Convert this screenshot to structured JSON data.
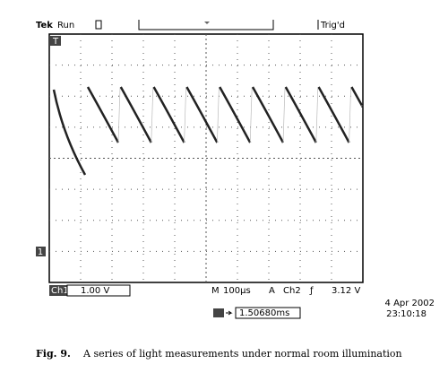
{
  "screen": {
    "brand": "Tek",
    "status": "Run",
    "trigger_status": "Trig'd",
    "trigger_marker": "T",
    "channel_marker": "1"
  },
  "readout": {
    "channel": "Ch1",
    "volts_per_div": "1.00 V",
    "mode": "M",
    "time_per_div": "100µs",
    "trigger_source_label": "A",
    "trigger_channel": "Ch2",
    "trigger_slope": "ƒ",
    "trigger_level": "3.12 V",
    "trigger_position": "1.50680ms",
    "date": "4 Apr 2002",
    "time": "23:10:18"
  },
  "caption": {
    "label": "Fig. 9.",
    "text": "A series of light measurements under normal room illumination"
  }
}
